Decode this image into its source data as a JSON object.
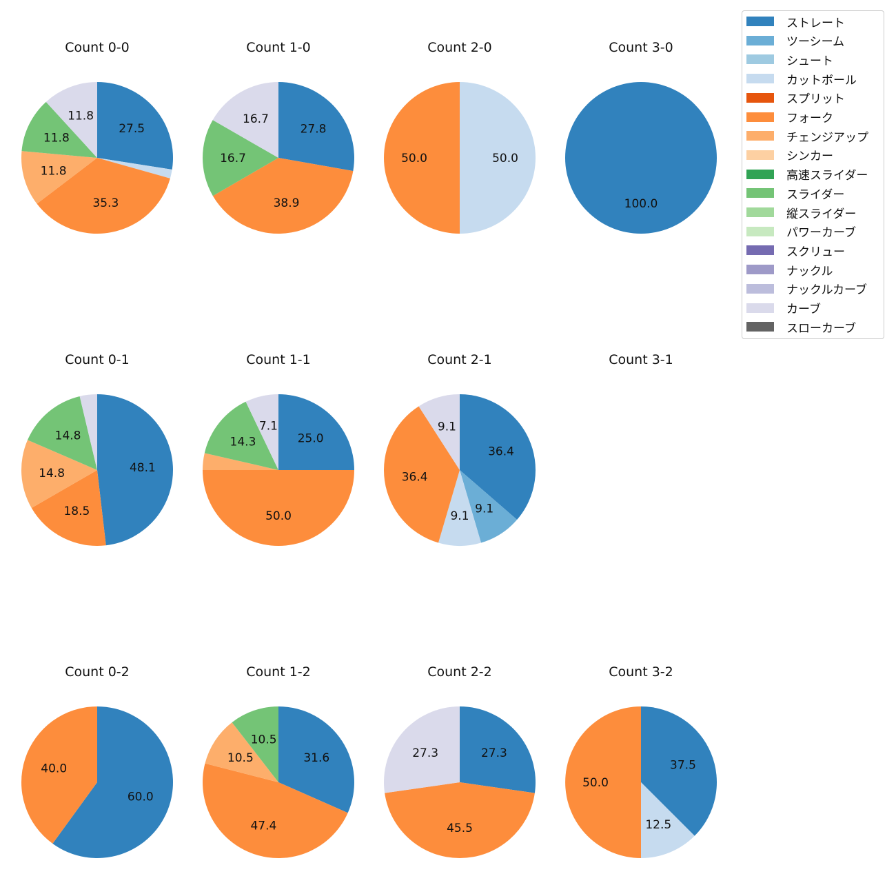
{
  "colors": {
    "ストレート": "#3182bd",
    "ツーシーム": "#6baed6",
    "シュート": "#9ecae1",
    "カットボール": "#c6dbef",
    "スプリット": "#e6550d",
    "フォーク": "#fd8d3c",
    "チェンジアップ": "#fdae6b",
    "シンカー": "#fdd0a2",
    "高速スライダー": "#31a354",
    "スライダー": "#74c476",
    "縦スライダー": "#a1d99b",
    "パワーカーブ": "#c7e9c0",
    "スクリュー": "#756bb1",
    "ナックル": "#9e9ac8",
    "ナックルカーブ": "#bcbddc",
    "カーブ": "#dadaeb",
    "スローカーブ": "#636363"
  },
  "legend": [
    "ストレート",
    "ツーシーム",
    "シュート",
    "カットボール",
    "スプリット",
    "フォーク",
    "チェンジアップ",
    "シンカー",
    "高速スライダー",
    "スライダー",
    "縦スライダー",
    "パワーカーブ",
    "スクリュー",
    "ナックル",
    "ナックルカーブ",
    "カーブ",
    "スローカーブ"
  ],
  "chart_data": [
    {
      "type": "pie",
      "title": "Count 0-0",
      "slices": [
        {
          "label": "ストレート",
          "value": 27.5
        },
        {
          "label": "カットボール",
          "value": 1.9
        },
        {
          "label": "フォーク",
          "value": 35.3
        },
        {
          "label": "チェンジアップ",
          "value": 11.8
        },
        {
          "label": "スライダー",
          "value": 11.8
        },
        {
          "label": "カーブ",
          "value": 11.8
        }
      ]
    },
    {
      "type": "pie",
      "title": "Count 1-0",
      "slices": [
        {
          "label": "ストレート",
          "value": 27.8
        },
        {
          "label": "フォーク",
          "value": 38.9
        },
        {
          "label": "スライダー",
          "value": 16.7
        },
        {
          "label": "カーブ",
          "value": 16.7
        }
      ]
    },
    {
      "type": "pie",
      "title": "Count 2-0",
      "slices": [
        {
          "label": "カットボール",
          "value": 50.0
        },
        {
          "label": "フォーク",
          "value": 50.0
        }
      ]
    },
    {
      "type": "pie",
      "title": "Count 3-0",
      "slices": [
        {
          "label": "ストレート",
          "value": 100.0
        }
      ]
    },
    {
      "type": "pie",
      "title": "Count 0-1",
      "slices": [
        {
          "label": "ストレート",
          "value": 48.1
        },
        {
          "label": "フォーク",
          "value": 18.5
        },
        {
          "label": "チェンジアップ",
          "value": 14.8
        },
        {
          "label": "スライダー",
          "value": 14.8
        },
        {
          "label": "カーブ",
          "value": 3.7
        }
      ]
    },
    {
      "type": "pie",
      "title": "Count 1-1",
      "slices": [
        {
          "label": "ストレート",
          "value": 25.0
        },
        {
          "label": "フォーク",
          "value": 50.0
        },
        {
          "label": "チェンジアップ",
          "value": 3.6
        },
        {
          "label": "スライダー",
          "value": 14.3
        },
        {
          "label": "カーブ",
          "value": 7.1
        }
      ]
    },
    {
      "type": "pie",
      "title": "Count 2-1",
      "slices": [
        {
          "label": "ストレート",
          "value": 36.4
        },
        {
          "label": "ツーシーム",
          "value": 9.1
        },
        {
          "label": "カットボール",
          "value": 9.1
        },
        {
          "label": "フォーク",
          "value": 36.4
        },
        {
          "label": "カーブ",
          "value": 9.1
        }
      ]
    },
    {
      "type": "pie",
      "title": "Count 3-1",
      "slices": []
    },
    {
      "type": "pie",
      "title": "Count 0-2",
      "slices": [
        {
          "label": "ストレート",
          "value": 60.0
        },
        {
          "label": "フォーク",
          "value": 40.0
        }
      ]
    },
    {
      "type": "pie",
      "title": "Count 1-2",
      "slices": [
        {
          "label": "ストレート",
          "value": 31.6
        },
        {
          "label": "フォーク",
          "value": 47.4
        },
        {
          "label": "チェンジアップ",
          "value": 10.5
        },
        {
          "label": "スライダー",
          "value": 10.5
        }
      ]
    },
    {
      "type": "pie",
      "title": "Count 2-2",
      "slices": [
        {
          "label": "ストレート",
          "value": 27.3
        },
        {
          "label": "フォーク",
          "value": 45.5
        },
        {
          "label": "カーブ",
          "value": 27.3
        }
      ]
    },
    {
      "type": "pie",
      "title": "Count 3-2",
      "slices": [
        {
          "label": "ストレート",
          "value": 37.5
        },
        {
          "label": "カットボール",
          "value": 12.5
        },
        {
          "label": "フォーク",
          "value": 50.0
        }
      ]
    }
  ]
}
